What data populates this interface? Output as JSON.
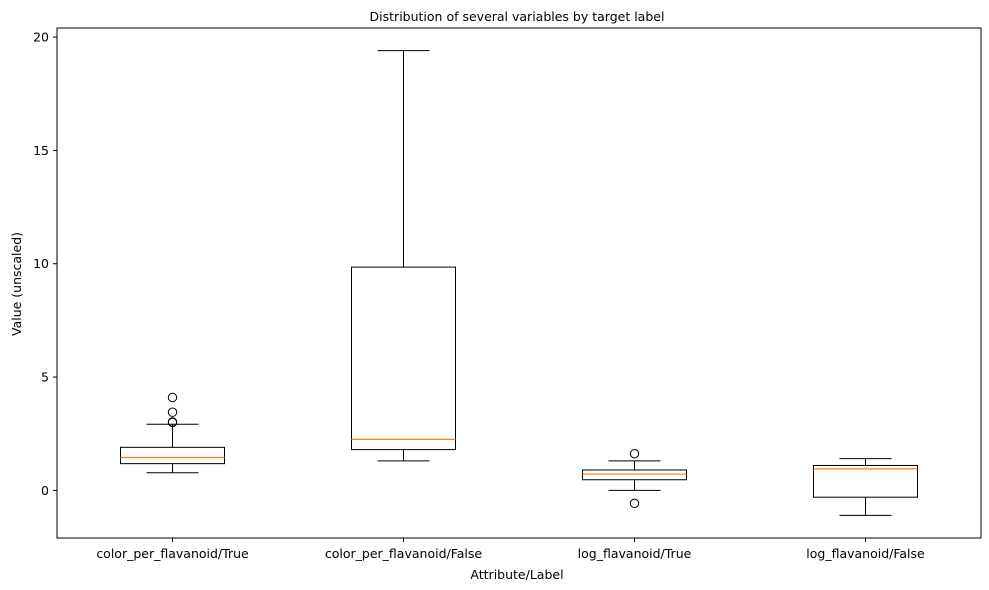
{
  "chart_data": {
    "type": "box",
    "title": "Distribution of several variables by target label",
    "xlabel": "Attribute/Label",
    "ylabel": "Value (unscaled)",
    "ylim": [
      -2.1,
      20.4
    ],
    "yticks": [
      0,
      5,
      10,
      15,
      20
    ],
    "categories": [
      "color_per_flavanoid/True",
      "color_per_flavanoid/False",
      "log_flavanoid/True",
      "log_flavanoid/False"
    ],
    "boxes": [
      {
        "whisker_low": 0.78,
        "q1": 1.18,
        "median": 1.45,
        "q3": 1.9,
        "whisker_high": 2.92,
        "outliers": [
          3.0,
          3.02,
          3.45,
          4.1
        ]
      },
      {
        "whisker_low": 1.3,
        "q1": 1.8,
        "median": 2.25,
        "q3": 9.85,
        "whisker_high": 19.4,
        "outliers": []
      },
      {
        "whisker_low": 0.0,
        "q1": 0.47,
        "median": 0.72,
        "q3": 0.9,
        "whisker_high": 1.3,
        "outliers": [
          1.62,
          -0.57
        ]
      },
      {
        "whisker_low": -1.1,
        "q1": -0.3,
        "median": 0.95,
        "q3": 1.1,
        "whisker_high": 1.4,
        "outliers": []
      }
    ],
    "colors": {
      "box": "#000000",
      "median": "#ff7f0e"
    },
    "grid": false
  }
}
